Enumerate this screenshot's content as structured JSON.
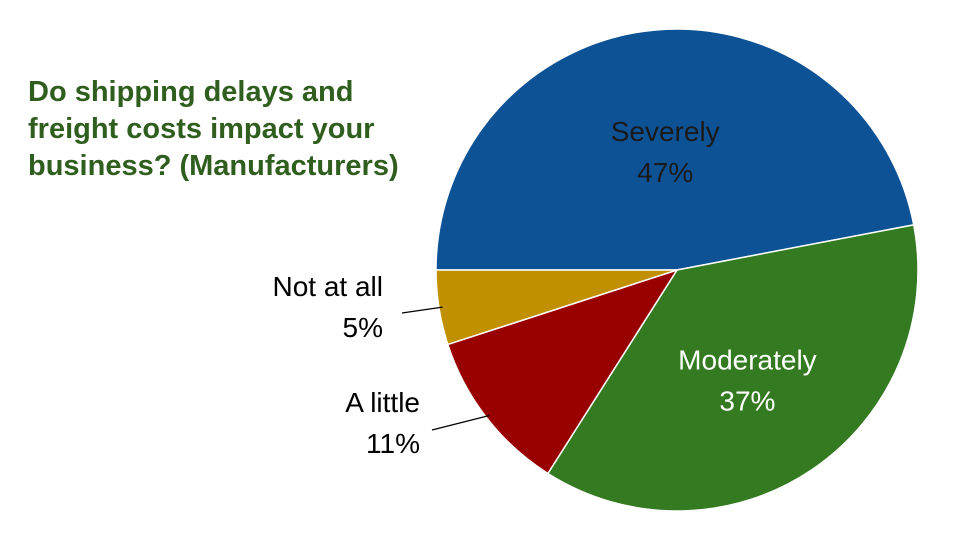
{
  "chart_data": {
    "type": "pie",
    "title_lines": [
      "Do shipping delays and",
      "freight costs impact your",
      "business? (Manufacturers)"
    ],
    "start_angle_deg": 180,
    "direction": "clockwise",
    "slices": [
      {
        "label": "Severely",
        "value": 47,
        "value_label": "47%",
        "color": "#0e5296",
        "text_color": "#1a1a1a",
        "label_position": "inside"
      },
      {
        "label": "Moderately",
        "value": 37,
        "value_label": "37%",
        "color": "#347a21",
        "text_color": "#ffffff",
        "label_position": "inside"
      },
      {
        "label": "A little",
        "value": 11,
        "value_label": "11%",
        "color": "#990000",
        "text_color": "#000000",
        "label_position": "outside"
      },
      {
        "label": "Not at all",
        "value": 5,
        "value_label": "5%",
        "color": "#c09000",
        "text_color": "#000000",
        "label_position": "outside"
      }
    ],
    "legend": "none"
  }
}
